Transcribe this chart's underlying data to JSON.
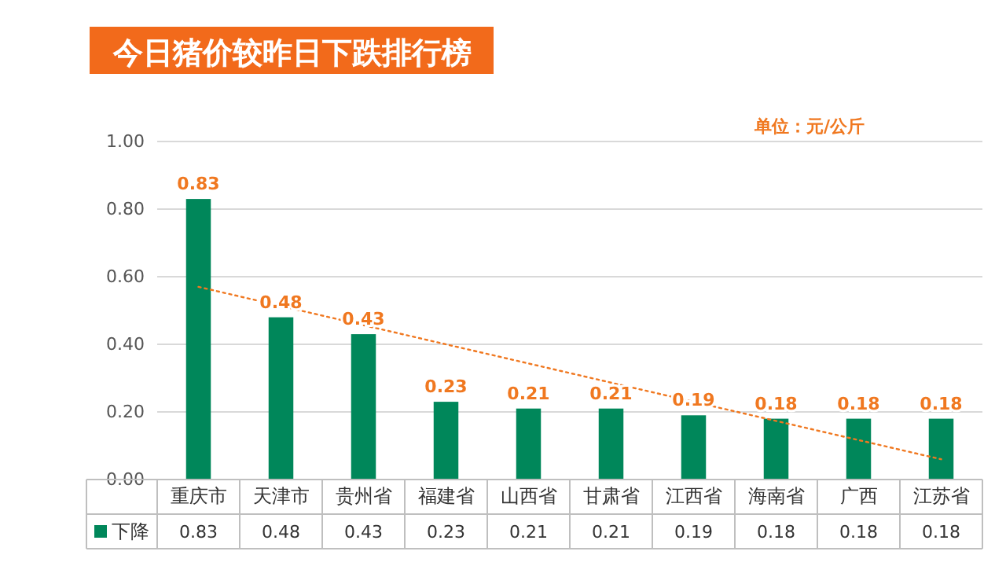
{
  "chart_data": {
    "type": "bar",
    "title": "今日猪价较昨日下跌排行榜",
    "annotations": [
      "单位：元/公斤"
    ],
    "categories": [
      "重庆市",
      "天津市",
      "贵州省",
      "福建省",
      "山西省",
      "甘肃省",
      "江西省",
      "海南省",
      "广西",
      "江苏省"
    ],
    "series": [
      {
        "name": "下降",
        "color": "#00875a",
        "values": [
          0.83,
          0.48,
          0.43,
          0.23,
          0.21,
          0.21,
          0.19,
          0.18,
          0.18,
          0.18
        ],
        "value_labels": [
          "0.83",
          "0.48",
          "0.43",
          "0.23",
          "0.21",
          "0.21",
          "0.19",
          "0.18",
          "0.18",
          "0.18"
        ]
      },
      {
        "type": "line",
        "color": "#f07820",
        "line_style": "dotted",
        "x": [
          "重庆市",
          "江苏省"
        ],
        "values": [
          0.57,
          0.06
        ]
      }
    ],
    "ylim": [
      0,
      1
    ],
    "yticks": [
      {
        "value": 0,
        "label": "0.00"
      },
      {
        "value": 0.2,
        "label": "0.20"
      },
      {
        "value": 0.4,
        "label": "0.40"
      },
      {
        "value": 0.6,
        "label": "0.60"
      },
      {
        "value": 0.8,
        "label": "0.80"
      },
      {
        "value": 1,
        "label": "1.00"
      }
    ],
    "grid": "y",
    "legend": "bottom"
  }
}
